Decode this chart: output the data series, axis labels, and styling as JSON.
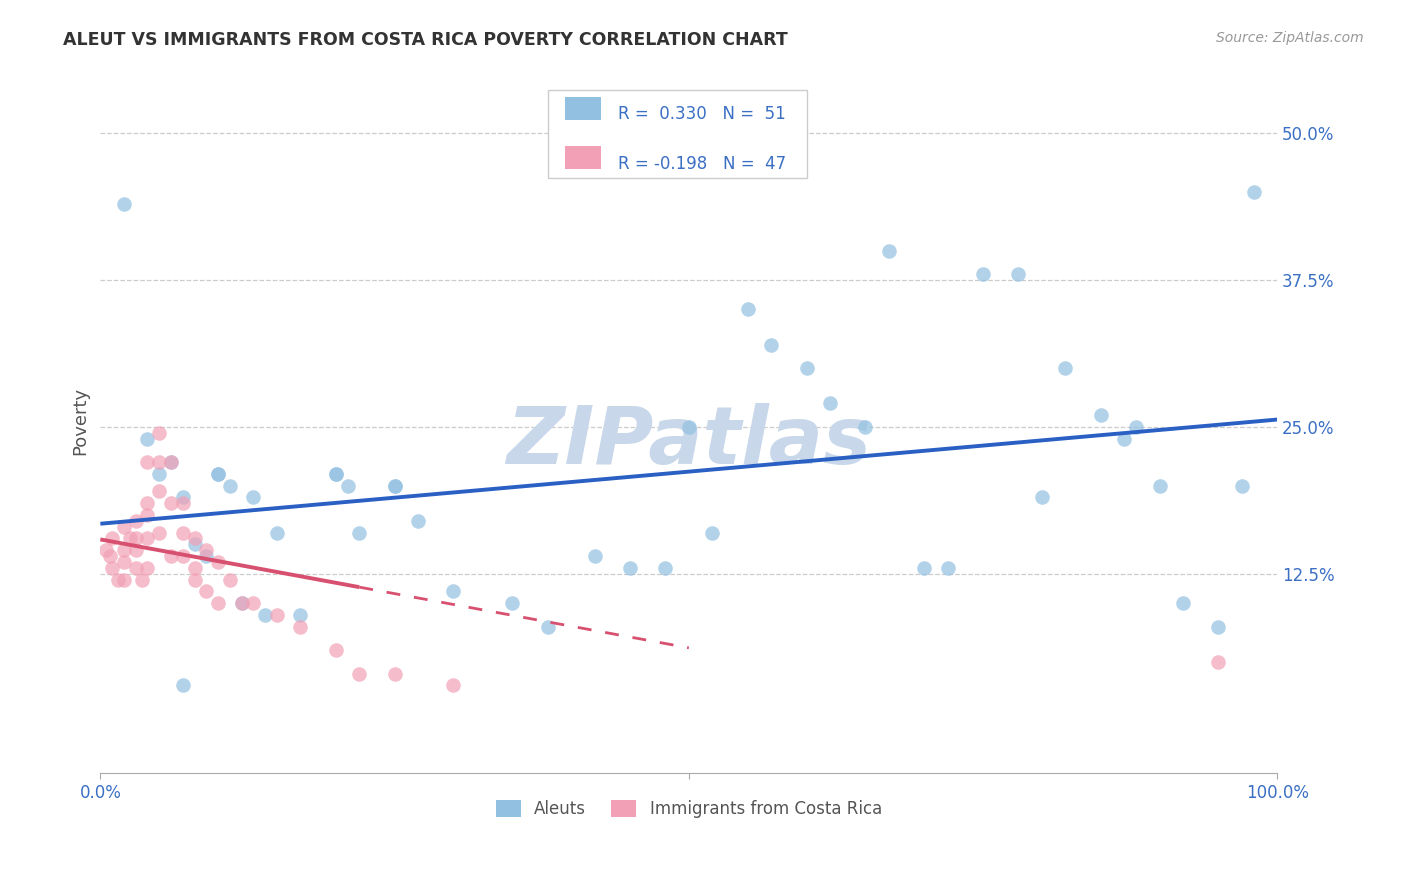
{
  "title": "ALEUT VS IMMIGRANTS FROM COSTA RICA POVERTY CORRELATION CHART",
  "source": "Source: ZipAtlas.com",
  "ylabel": "Poverty",
  "ytick_labels": [
    "12.5%",
    "25.0%",
    "37.5%",
    "50.0%"
  ],
  "ytick_values": [
    0.125,
    0.25,
    0.375,
    0.5
  ],
  "xmin": 0.0,
  "xmax": 1.0,
  "ymin": -0.045,
  "ymax": 0.555,
  "aleuts_R": 0.33,
  "aleuts_N": 51,
  "costa_rica_R": -0.198,
  "costa_rica_N": 47,
  "aleuts_color": "#92c0e0",
  "costa_rica_color": "#f2a0b5",
  "trendline_blue": "#2a5fc4",
  "trendline_pink": "#d85070",
  "watermark_color": "#c8d8ea",
  "aleuts_x": [
    0.02,
    0.04,
    0.06,
    0.07,
    0.08,
    0.09,
    0.1,
    0.11,
    0.12,
    0.13,
    0.14,
    0.15,
    0.17,
    0.2,
    0.21,
    0.22,
    0.25,
    0.27,
    0.3,
    0.35,
    0.38,
    0.45,
    0.48,
    0.52,
    0.55,
    0.57,
    0.62,
    0.65,
    0.7,
    0.72,
    0.75,
    0.78,
    0.8,
    0.82,
    0.85,
    0.87,
    0.88,
    0.9,
    0.92,
    0.95,
    0.97,
    0.98,
    0.6,
    0.07,
    0.5,
    0.42,
    0.67,
    0.2,
    0.05,
    0.1,
    0.25
  ],
  "aleuts_y": [
    0.44,
    0.24,
    0.22,
    0.19,
    0.15,
    0.14,
    0.21,
    0.2,
    0.1,
    0.19,
    0.09,
    0.16,
    0.09,
    0.21,
    0.2,
    0.16,
    0.2,
    0.17,
    0.11,
    0.1,
    0.08,
    0.13,
    0.13,
    0.16,
    0.35,
    0.32,
    0.27,
    0.25,
    0.13,
    0.13,
    0.38,
    0.38,
    0.19,
    0.3,
    0.26,
    0.24,
    0.25,
    0.2,
    0.1,
    0.08,
    0.2,
    0.45,
    0.3,
    0.03,
    0.25,
    0.14,
    0.4,
    0.21,
    0.21,
    0.21,
    0.2
  ],
  "costa_rica_x": [
    0.005,
    0.008,
    0.01,
    0.01,
    0.015,
    0.02,
    0.02,
    0.02,
    0.02,
    0.025,
    0.03,
    0.03,
    0.03,
    0.03,
    0.035,
    0.04,
    0.04,
    0.04,
    0.04,
    0.04,
    0.05,
    0.05,
    0.05,
    0.05,
    0.06,
    0.06,
    0.06,
    0.07,
    0.07,
    0.07,
    0.08,
    0.08,
    0.08,
    0.09,
    0.09,
    0.1,
    0.1,
    0.11,
    0.12,
    0.13,
    0.15,
    0.17,
    0.2,
    0.22,
    0.25,
    0.3,
    0.95
  ],
  "costa_rica_y": [
    0.145,
    0.14,
    0.155,
    0.13,
    0.12,
    0.165,
    0.145,
    0.135,
    0.12,
    0.155,
    0.17,
    0.155,
    0.145,
    0.13,
    0.12,
    0.22,
    0.185,
    0.175,
    0.155,
    0.13,
    0.245,
    0.22,
    0.195,
    0.16,
    0.22,
    0.185,
    0.14,
    0.185,
    0.16,
    0.14,
    0.155,
    0.13,
    0.12,
    0.145,
    0.11,
    0.135,
    0.1,
    0.12,
    0.1,
    0.1,
    0.09,
    0.08,
    0.06,
    0.04,
    0.04,
    0.03,
    0.05
  ],
  "trendline_blue_x0": 0.0,
  "trendline_blue_x1": 1.0,
  "trendline_pink_solid_x0": 0.0,
  "trendline_pink_solid_x1": 0.22,
  "trendline_pink_dash_x0": 0.22,
  "trendline_pink_dash_x1": 0.5
}
